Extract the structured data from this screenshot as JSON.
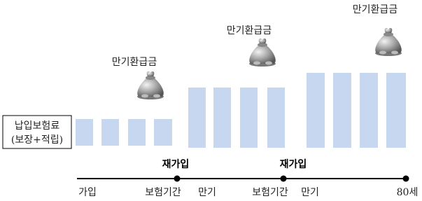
{
  "premium_box": {
    "line1": "납입보험료",
    "line2": "(보장+적립)"
  },
  "refund_labels": [
    "만기환급금",
    "만기환급금",
    "만기환급금"
  ],
  "renewal_labels": [
    "재가입",
    "재가입"
  ],
  "timeline_labels": [
    "가입",
    "보험기간",
    "만기",
    "보험기간",
    "만기",
    "80세"
  ]
}
